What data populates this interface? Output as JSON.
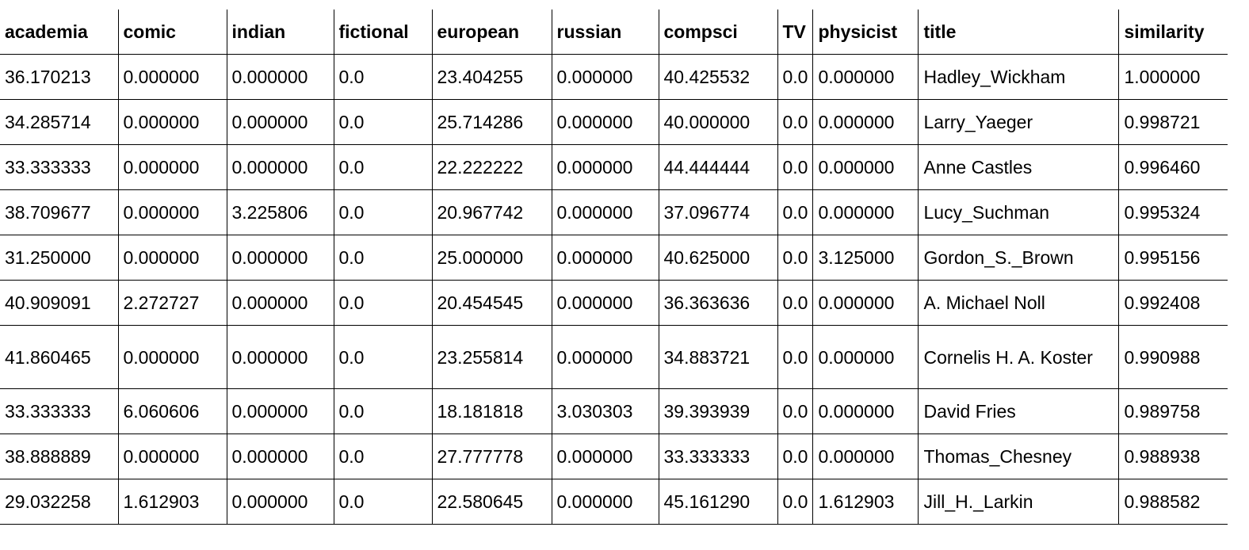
{
  "table": {
    "columns": [
      "academia",
      "comic",
      "indian",
      "fictional",
      "european",
      "russian",
      "compsci",
      "TV",
      "physicist",
      "title",
      "similarity"
    ],
    "rows": [
      [
        "36.170213",
        "0.000000",
        "0.000000",
        "0.0",
        "23.404255",
        "0.000000",
        "40.425532",
        "0.0",
        "0.000000",
        "Hadley_Wickham",
        "1.000000"
      ],
      [
        "34.285714",
        "0.000000",
        "0.000000",
        "0.0",
        "25.714286",
        "0.000000",
        "40.000000",
        "0.0",
        "0.000000",
        "Larry_Yaeger",
        "0.998721"
      ],
      [
        "33.333333",
        "0.000000",
        "0.000000",
        "0.0",
        "22.222222",
        "0.000000",
        "44.444444",
        "0.0",
        "0.000000",
        "Anne Castles",
        "0.996460"
      ],
      [
        "38.709677",
        "0.000000",
        "3.225806",
        "0.0",
        "20.967742",
        "0.000000",
        "37.096774",
        "0.0",
        "0.000000",
        "Lucy_Suchman",
        "0.995324"
      ],
      [
        "31.250000",
        "0.000000",
        "0.000000",
        "0.0",
        "25.000000",
        "0.000000",
        "40.625000",
        "0.0",
        "3.125000",
        "Gordon_S._Brown",
        "0.995156"
      ],
      [
        "40.909091",
        "2.272727",
        "0.000000",
        "0.0",
        "20.454545",
        "0.000000",
        "36.363636",
        "0.0",
        "0.000000",
        "A. Michael Noll",
        "0.992408"
      ],
      [
        "41.860465",
        "0.000000",
        "0.000000",
        "0.0",
        "23.255814",
        "0.000000",
        "34.883721",
        "0.0",
        "0.000000",
        "Cornelis H. A. Koster",
        "0.990988"
      ],
      [
        "33.333333",
        "6.060606",
        "0.000000",
        "0.0",
        "18.181818",
        "3.030303",
        "39.393939",
        "0.0",
        "0.000000",
        "David Fries",
        "0.989758"
      ],
      [
        "38.888889",
        "0.000000",
        "0.000000",
        "0.0",
        "27.777778",
        "0.000000",
        "33.333333",
        "0.0",
        "0.000000",
        "Thomas_Chesney",
        "0.988938"
      ],
      [
        "29.032258",
        "1.612903",
        "0.000000",
        "0.0",
        "22.580645",
        "0.000000",
        "45.161290",
        "0.0",
        "1.612903",
        "Jill_H._Larkin",
        "0.988582"
      ]
    ]
  }
}
